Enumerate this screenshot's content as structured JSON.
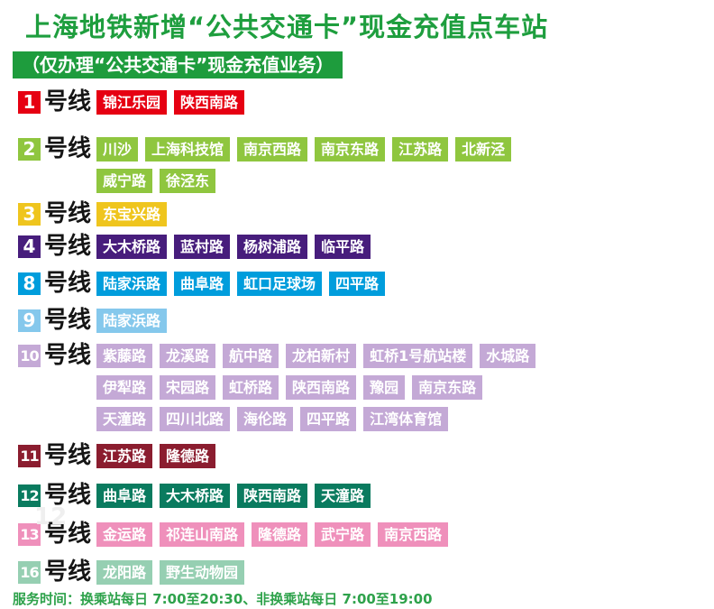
{
  "title": "上海地铁新增“公共交通卡”现金充值点车站",
  "subtitle": "（仅办理“公共交通卡”现金充值业务）",
  "footer": "服务时间：换乘站每日 7:00至20:30、非换乘站每日 7:00至19:00",
  "line_suffix": "号线",
  "colors": {
    "title_green": "#1E9E3E",
    "subtitle_bg": "#1E9C3D",
    "footer_green": "#2EA24B",
    "suffix_black": "#151515"
  },
  "lines": [
    {
      "number": "1",
      "color": "#E60012",
      "station_rows": [
        [
          "锦江乐园",
          "陕西南路"
        ]
      ]
    },
    {
      "number": "2",
      "color": "#8FC63F",
      "station_rows": [
        [
          "川沙",
          "上海科技馆",
          "南京西路",
          "南京东路",
          "江苏路",
          "北新泾"
        ],
        [
          "威宁路",
          "徐泾东"
        ]
      ]
    },
    {
      "number": "3",
      "color": "#EFC51E",
      "station_rows": [
        [
          "东宝兴路"
        ]
      ]
    },
    {
      "number": "4",
      "color": "#471D7C",
      "station_rows": [
        [
          "大木桥路",
          "蓝村路",
          "杨树浦路",
          "临平路"
        ]
      ]
    },
    {
      "number": "8",
      "color": "#009DDC",
      "station_rows": [
        [
          "陆家浜路",
          "曲阜路",
          "虹口足球场",
          "四平路"
        ]
      ]
    },
    {
      "number": "9",
      "color": "#85C8EC",
      "station_rows": [
        [
          "陆家浜路"
        ]
      ]
    },
    {
      "number": "10",
      "color": "#C4A9D6",
      "station_rows": [
        [
          "紫藤路",
          "龙溪路",
          "航中路",
          "龙柏新村",
          "虹桥1号航站楼",
          "水城路"
        ],
        [
          "伊犁路",
          "宋园路",
          "虹桥路",
          "陕西南路",
          "豫园",
          "南京东路"
        ],
        [
          "天潼路",
          "四川北路",
          "海伦路",
          "四平路",
          "江湾体育馆"
        ]
      ]
    },
    {
      "number": "11",
      "color": "#8B1D2F",
      "station_rows": [
        [
          "江苏路",
          "隆德路"
        ]
      ]
    },
    {
      "number": "12",
      "color": "#0A7B5F",
      "ghost": "12",
      "station_rows": [
        [
          "曲阜路",
          "大木桥路",
          "陕西南路",
          "天潼路"
        ]
      ]
    },
    {
      "number": "13",
      "color": "#EF90BB",
      "station_rows": [
        [
          "金运路",
          "祁连山南路",
          "隆德路",
          "武宁路",
          "南京西路"
        ]
      ]
    },
    {
      "number": "16",
      "color": "#96CFB2",
      "station_rows": [
        [
          "龙阳路",
          "野生动物园"
        ]
      ]
    }
  ]
}
